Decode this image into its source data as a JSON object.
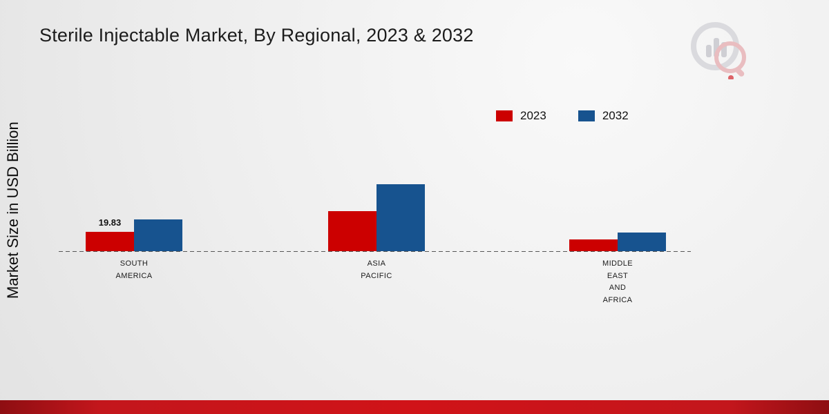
{
  "page": {
    "title": "Sterile Injectable Market, By Regional, 2023 & 2032",
    "y_axis_label": "Market Size in USD Billion",
    "accent_color": "#c3161c"
  },
  "chart_data": {
    "type": "bar",
    "title": "Sterile Injectable Market, By Regional, 2023 & 2032",
    "xlabel": "",
    "ylabel": "Market Size in USD Billion",
    "categories": [
      "SOUTH AMERICA",
      "ASIA PACIFIC",
      "MIDDLE EAST AND AFRICA"
    ],
    "category_labels": [
      "SOUTH\nAMERICA",
      "ASIA\nPACIFIC",
      "MIDDLE\nEAST\nAND\nAFRICA"
    ],
    "series": [
      {
        "name": "2023",
        "color": "#cc0000",
        "values": [
          19.83,
          41.0,
          12.0
        ]
      },
      {
        "name": "2032",
        "color": "#17538f",
        "values": [
          32.5,
          68.7,
          19.0
        ]
      }
    ],
    "annotations": [
      {
        "series": "2023",
        "category": "SOUTH AMERICA",
        "text": "19.83"
      }
    ],
    "baseline_style": "dashed",
    "grid": false,
    "legend_position": "top-right"
  }
}
